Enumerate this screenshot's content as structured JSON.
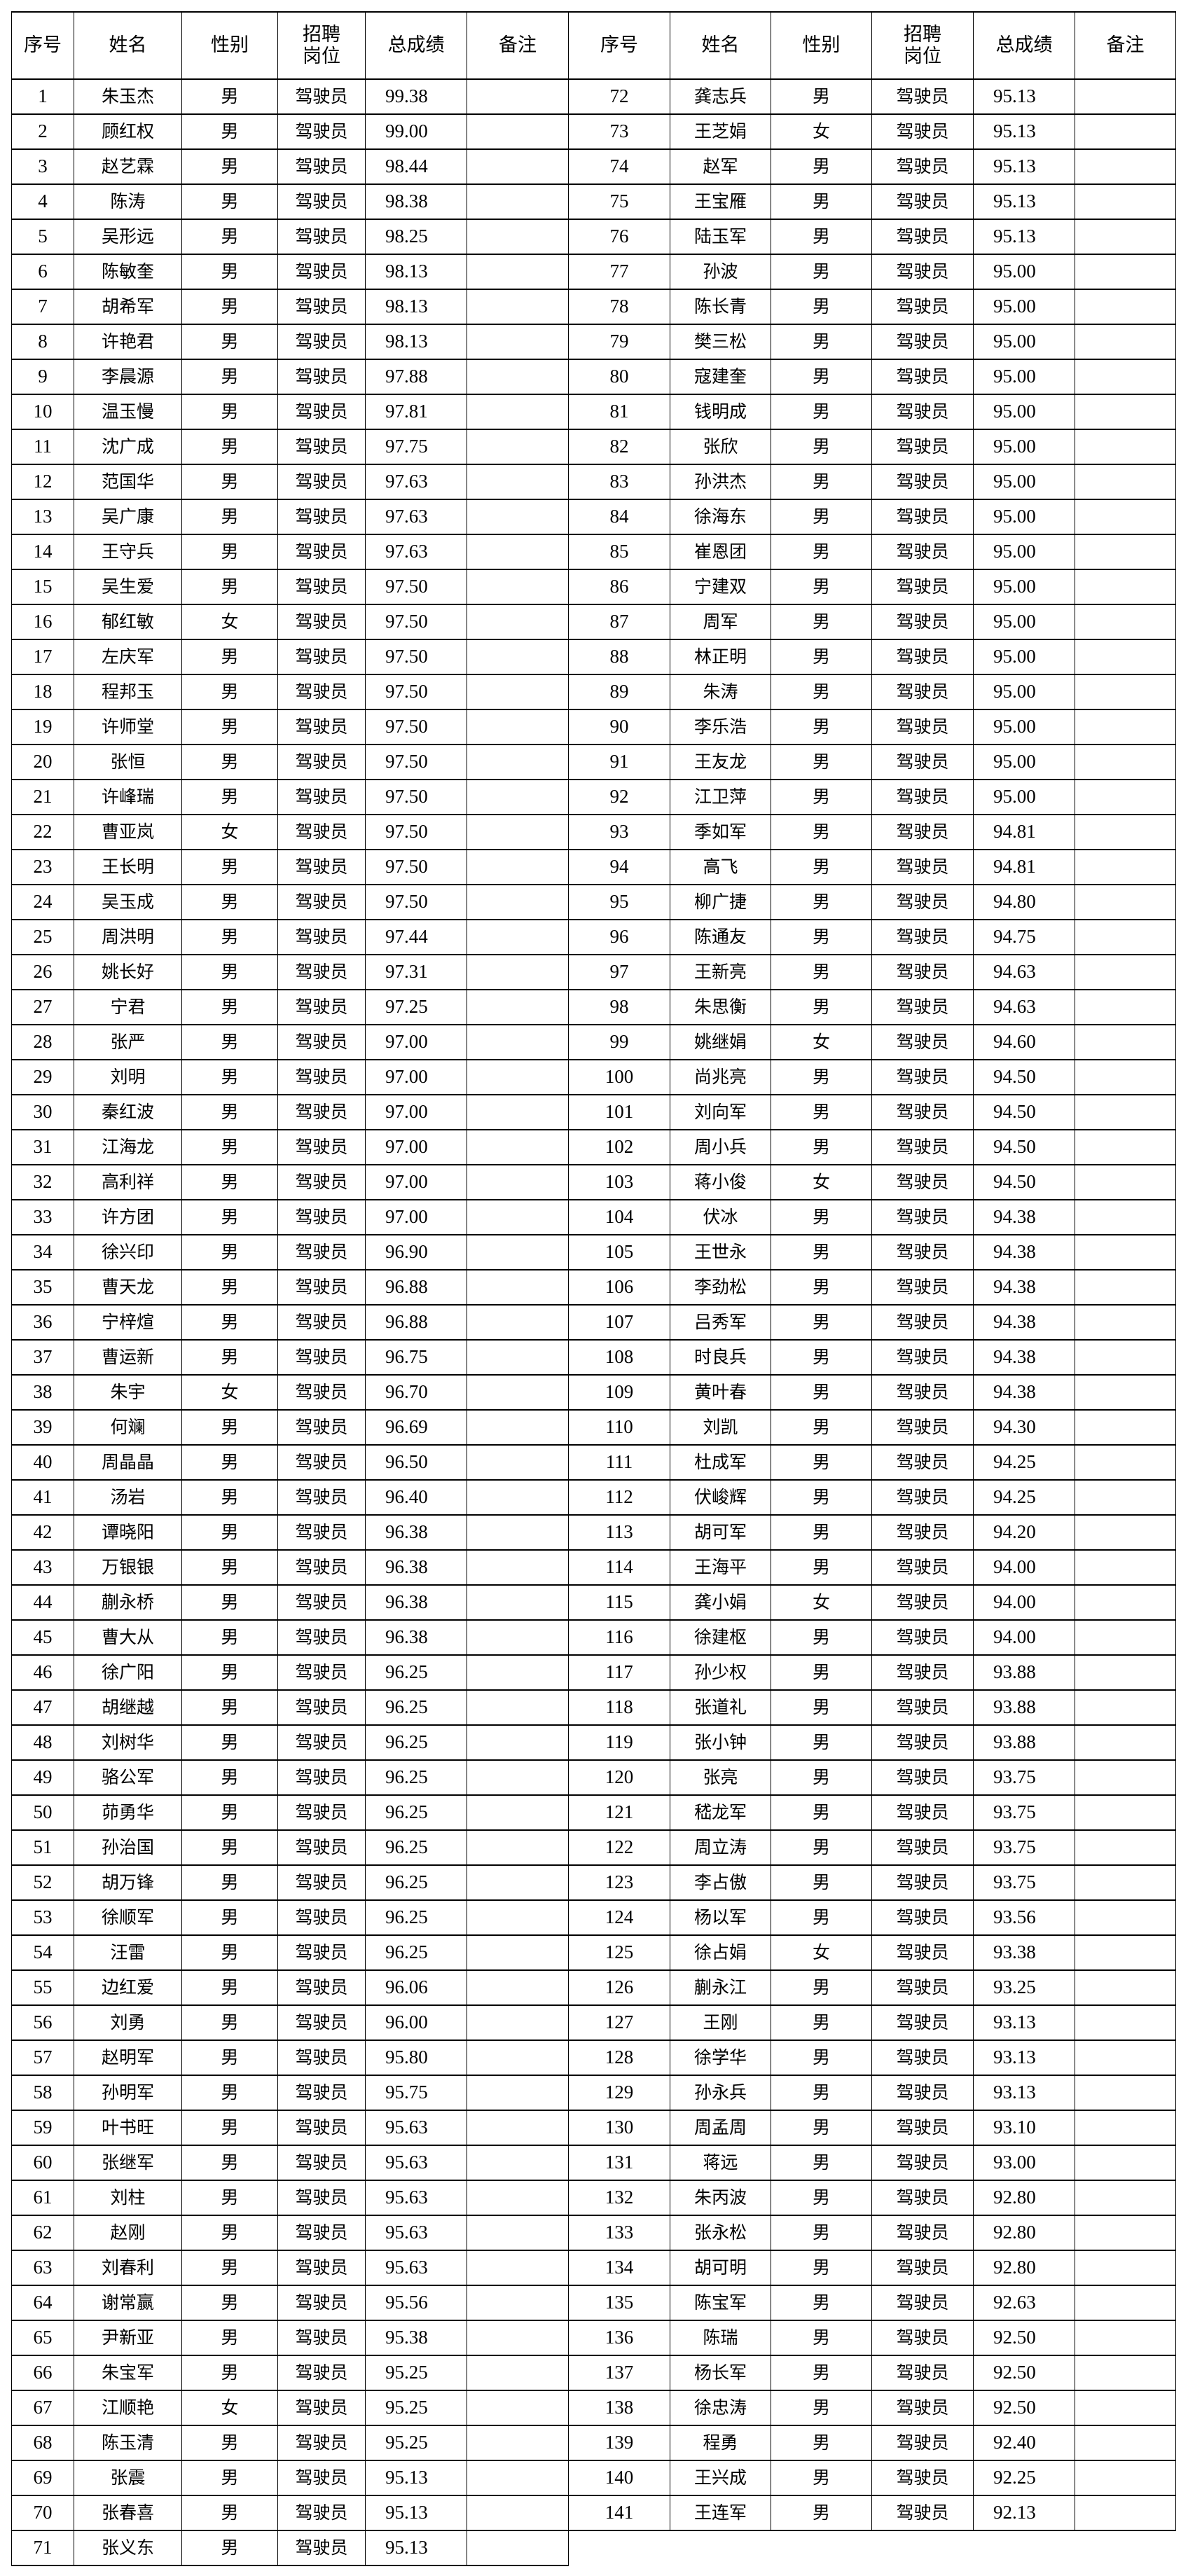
{
  "headers": [
    "序号",
    "姓名",
    "性别",
    "招聘\n岗位",
    "总成绩",
    "备注"
  ],
  "left_rows": [
    [
      "1",
      "朱玉杰",
      "男",
      "驾驶员",
      "99.38",
      ""
    ],
    [
      "2",
      "顾红权",
      "男",
      "驾驶员",
      "99.00",
      ""
    ],
    [
      "3",
      "赵艺霖",
      "男",
      "驾驶员",
      "98.44",
      ""
    ],
    [
      "4",
      "陈涛",
      "男",
      "驾驶员",
      "98.38",
      ""
    ],
    [
      "5",
      "吴形远",
      "男",
      "驾驶员",
      "98.25",
      ""
    ],
    [
      "6",
      "陈敏奎",
      "男",
      "驾驶员",
      "98.13",
      ""
    ],
    [
      "7",
      "胡希军",
      "男",
      "驾驶员",
      "98.13",
      ""
    ],
    [
      "8",
      "许艳君",
      "男",
      "驾驶员",
      "98.13",
      ""
    ],
    [
      "9",
      "李晨源",
      "男",
      "驾驶员",
      "97.88",
      ""
    ],
    [
      "10",
      "温玉慢",
      "男",
      "驾驶员",
      "97.81",
      ""
    ],
    [
      "11",
      "沈广成",
      "男",
      "驾驶员",
      "97.75",
      ""
    ],
    [
      "12",
      "范国华",
      "男",
      "驾驶员",
      "97.63",
      ""
    ],
    [
      "13",
      "吴广康",
      "男",
      "驾驶员",
      "97.63",
      ""
    ],
    [
      "14",
      "王守兵",
      "男",
      "驾驶员",
      "97.63",
      ""
    ],
    [
      "15",
      "吴生爱",
      "男",
      "驾驶员",
      "97.50",
      ""
    ],
    [
      "16",
      "郁红敏",
      "女",
      "驾驶员",
      "97.50",
      ""
    ],
    [
      "17",
      "左庆军",
      "男",
      "驾驶员",
      "97.50",
      ""
    ],
    [
      "18",
      "程邦玉",
      "男",
      "驾驶员",
      "97.50",
      ""
    ],
    [
      "19",
      "许师堂",
      "男",
      "驾驶员",
      "97.50",
      ""
    ],
    [
      "20",
      "张恒",
      "男",
      "驾驶员",
      "97.50",
      ""
    ],
    [
      "21",
      "许峰瑞",
      "男",
      "驾驶员",
      "97.50",
      ""
    ],
    [
      "22",
      "曹亚岚",
      "女",
      "驾驶员",
      "97.50",
      ""
    ],
    [
      "23",
      "王长明",
      "男",
      "驾驶员",
      "97.50",
      ""
    ],
    [
      "24",
      "吴玉成",
      "男",
      "驾驶员",
      "97.50",
      ""
    ],
    [
      "25",
      "周洪明",
      "男",
      "驾驶员",
      "97.44",
      ""
    ],
    [
      "26",
      "姚长好",
      "男",
      "驾驶员",
      "97.31",
      ""
    ],
    [
      "27",
      "宁君",
      "男",
      "驾驶员",
      "97.25",
      ""
    ],
    [
      "28",
      "张严",
      "男",
      "驾驶员",
      "97.00",
      ""
    ],
    [
      "29",
      "刘明",
      "男",
      "驾驶员",
      "97.00",
      ""
    ],
    [
      "30",
      "秦红波",
      "男",
      "驾驶员",
      "97.00",
      ""
    ],
    [
      "31",
      "江海龙",
      "男",
      "驾驶员",
      "97.00",
      ""
    ],
    [
      "32",
      "高利祥",
      "男",
      "驾驶员",
      "97.00",
      ""
    ],
    [
      "33",
      "许方团",
      "男",
      "驾驶员",
      "97.00",
      ""
    ],
    [
      "34",
      "徐兴印",
      "男",
      "驾驶员",
      "96.90",
      ""
    ],
    [
      "35",
      "曹天龙",
      "男",
      "驾驶员",
      "96.88",
      ""
    ],
    [
      "36",
      "宁梓煊",
      "男",
      "驾驶员",
      "96.88",
      ""
    ],
    [
      "37",
      "曹运新",
      "男",
      "驾驶员",
      "96.75",
      ""
    ],
    [
      "38",
      "朱宇",
      "女",
      "驾驶员",
      "96.70",
      ""
    ],
    [
      "39",
      "何斓",
      "男",
      "驾驶员",
      "96.69",
      ""
    ],
    [
      "40",
      "周晶晶",
      "男",
      "驾驶员",
      "96.50",
      ""
    ],
    [
      "41",
      "汤岩",
      "男",
      "驾驶员",
      "96.40",
      ""
    ],
    [
      "42",
      "谭晓阳",
      "男",
      "驾驶员",
      "96.38",
      ""
    ],
    [
      "43",
      "万银银",
      "男",
      "驾驶员",
      "96.38",
      ""
    ],
    [
      "44",
      "蒯永桥",
      "男",
      "驾驶员",
      "96.38",
      ""
    ],
    [
      "45",
      "曹大从",
      "男",
      "驾驶员",
      "96.38",
      ""
    ],
    [
      "46",
      "徐广阳",
      "男",
      "驾驶员",
      "96.25",
      ""
    ],
    [
      "47",
      "胡继越",
      "男",
      "驾驶员",
      "96.25",
      ""
    ],
    [
      "48",
      "刘树华",
      "男",
      "驾驶员",
      "96.25",
      ""
    ],
    [
      "49",
      "骆公军",
      "男",
      "驾驶员",
      "96.25",
      ""
    ],
    [
      "50",
      "茆勇华",
      "男",
      "驾驶员",
      "96.25",
      ""
    ],
    [
      "51",
      "孙治国",
      "男",
      "驾驶员",
      "96.25",
      ""
    ],
    [
      "52",
      "胡万锋",
      "男",
      "驾驶员",
      "96.25",
      ""
    ],
    [
      "53",
      "徐顺军",
      "男",
      "驾驶员",
      "96.25",
      ""
    ],
    [
      "54",
      "汪雷",
      "男",
      "驾驶员",
      "96.25",
      ""
    ],
    [
      "55",
      "边红爱",
      "男",
      "驾驶员",
      "96.06",
      ""
    ],
    [
      "56",
      "刘勇",
      "男",
      "驾驶员",
      "96.00",
      ""
    ],
    [
      "57",
      "赵明军",
      "男",
      "驾驶员",
      "95.80",
      ""
    ],
    [
      "58",
      "孙明军",
      "男",
      "驾驶员",
      "95.75",
      ""
    ],
    [
      "59",
      "叶书旺",
      "男",
      "驾驶员",
      "95.63",
      ""
    ],
    [
      "60",
      "张继军",
      "男",
      "驾驶员",
      "95.63",
      ""
    ],
    [
      "61",
      "刘柱",
      "男",
      "驾驶员",
      "95.63",
      ""
    ],
    [
      "62",
      "赵刚",
      "男",
      "驾驶员",
      "95.63",
      ""
    ],
    [
      "63",
      "刘春利",
      "男",
      "驾驶员",
      "95.63",
      ""
    ],
    [
      "64",
      "谢常赢",
      "男",
      "驾驶员",
      "95.56",
      ""
    ],
    [
      "65",
      "尹新亚",
      "男",
      "驾驶员",
      "95.38",
      ""
    ],
    [
      "66",
      "朱宝军",
      "男",
      "驾驶员",
      "95.25",
      ""
    ],
    [
      "67",
      "江顺艳",
      "女",
      "驾驶员",
      "95.25",
      ""
    ],
    [
      "68",
      "陈玉清",
      "男",
      "驾驶员",
      "95.25",
      ""
    ],
    [
      "69",
      "张震",
      "男",
      "驾驶员",
      "95.13",
      ""
    ],
    [
      "70",
      "张春喜",
      "男",
      "驾驶员",
      "95.13",
      ""
    ],
    [
      "71",
      "张义东",
      "男",
      "驾驶员",
      "95.13",
      ""
    ]
  ],
  "right_rows": [
    [
      "72",
      "龚志兵",
      "男",
      "驾驶员",
      "95.13",
      ""
    ],
    [
      "73",
      "王芝娟",
      "女",
      "驾驶员",
      "95.13",
      ""
    ],
    [
      "74",
      "赵军",
      "男",
      "驾驶员",
      "95.13",
      ""
    ],
    [
      "75",
      "王宝雁",
      "男",
      "驾驶员",
      "95.13",
      ""
    ],
    [
      "76",
      "陆玉军",
      "男",
      "驾驶员",
      "95.13",
      ""
    ],
    [
      "77",
      "孙波",
      "男",
      "驾驶员",
      "95.00",
      ""
    ],
    [
      "78",
      "陈长青",
      "男",
      "驾驶员",
      "95.00",
      ""
    ],
    [
      "79",
      "樊三松",
      "男",
      "驾驶员",
      "95.00",
      ""
    ],
    [
      "80",
      "寇建奎",
      "男",
      "驾驶员",
      "95.00",
      ""
    ],
    [
      "81",
      "钱明成",
      "男",
      "驾驶员",
      "95.00",
      ""
    ],
    [
      "82",
      "张欣",
      "男",
      "驾驶员",
      "95.00",
      ""
    ],
    [
      "83",
      "孙洪杰",
      "男",
      "驾驶员",
      "95.00",
      ""
    ],
    [
      "84",
      "徐海东",
      "男",
      "驾驶员",
      "95.00",
      ""
    ],
    [
      "85",
      "崔恩团",
      "男",
      "驾驶员",
      "95.00",
      ""
    ],
    [
      "86",
      "宁建双",
      "男",
      "驾驶员",
      "95.00",
      ""
    ],
    [
      "87",
      "周军",
      "男",
      "驾驶员",
      "95.00",
      ""
    ],
    [
      "88",
      "林正明",
      "男",
      "驾驶员",
      "95.00",
      ""
    ],
    [
      "89",
      "朱涛",
      "男",
      "驾驶员",
      "95.00",
      ""
    ],
    [
      "90",
      "李乐浩",
      "男",
      "驾驶员",
      "95.00",
      ""
    ],
    [
      "91",
      "王友龙",
      "男",
      "驾驶员",
      "95.00",
      ""
    ],
    [
      "92",
      "江卫萍",
      "男",
      "驾驶员",
      "95.00",
      ""
    ],
    [
      "93",
      "季如军",
      "男",
      "驾驶员",
      "94.81",
      ""
    ],
    [
      "94",
      "高飞",
      "男",
      "驾驶员",
      "94.81",
      ""
    ],
    [
      "95",
      "柳广捷",
      "男",
      "驾驶员",
      "94.80",
      ""
    ],
    [
      "96",
      "陈通友",
      "男",
      "驾驶员",
      "94.75",
      ""
    ],
    [
      "97",
      "王新亮",
      "男",
      "驾驶员",
      "94.63",
      ""
    ],
    [
      "98",
      "朱思衡",
      "男",
      "驾驶员",
      "94.63",
      ""
    ],
    [
      "99",
      "姚继娟",
      "女",
      "驾驶员",
      "94.60",
      ""
    ],
    [
      "100",
      "尚兆亮",
      "男",
      "驾驶员",
      "94.50",
      ""
    ],
    [
      "101",
      "刘向军",
      "男",
      "驾驶员",
      "94.50",
      ""
    ],
    [
      "102",
      "周小兵",
      "男",
      "驾驶员",
      "94.50",
      ""
    ],
    [
      "103",
      "蒋小俊",
      "女",
      "驾驶员",
      "94.50",
      ""
    ],
    [
      "104",
      "伏冰",
      "男",
      "驾驶员",
      "94.38",
      ""
    ],
    [
      "105",
      "王世永",
      "男",
      "驾驶员",
      "94.38",
      ""
    ],
    [
      "106",
      "李劲松",
      "男",
      "驾驶员",
      "94.38",
      ""
    ],
    [
      "107",
      "吕秀军",
      "男",
      "驾驶员",
      "94.38",
      ""
    ],
    [
      "108",
      "时良兵",
      "男",
      "驾驶员",
      "94.38",
      ""
    ],
    [
      "109",
      "黄叶春",
      "男",
      "驾驶员",
      "94.38",
      ""
    ],
    [
      "110",
      "刘凯",
      "男",
      "驾驶员",
      "94.30",
      ""
    ],
    [
      "111",
      "杜成军",
      "男",
      "驾驶员",
      "94.25",
      ""
    ],
    [
      "112",
      "伏峻辉",
      "男",
      "驾驶员",
      "94.25",
      ""
    ],
    [
      "113",
      "胡可军",
      "男",
      "驾驶员",
      "94.20",
      ""
    ],
    [
      "114",
      "王海平",
      "男",
      "驾驶员",
      "94.00",
      ""
    ],
    [
      "115",
      "龚小娟",
      "女",
      "驾驶员",
      "94.00",
      ""
    ],
    [
      "116",
      "徐建枢",
      "男",
      "驾驶员",
      "94.00",
      ""
    ],
    [
      "117",
      "孙少权",
      "男",
      "驾驶员",
      "93.88",
      ""
    ],
    [
      "118",
      "张道礼",
      "男",
      "驾驶员",
      "93.88",
      ""
    ],
    [
      "119",
      "张小钟",
      "男",
      "驾驶员",
      "93.88",
      ""
    ],
    [
      "120",
      "张亮",
      "男",
      "驾驶员",
      "93.75",
      ""
    ],
    [
      "121",
      "嵇龙军",
      "男",
      "驾驶员",
      "93.75",
      ""
    ],
    [
      "122",
      "周立涛",
      "男",
      "驾驶员",
      "93.75",
      ""
    ],
    [
      "123",
      "李占傲",
      "男",
      "驾驶员",
      "93.75",
      ""
    ],
    [
      "124",
      "杨以军",
      "男",
      "驾驶员",
      "93.56",
      ""
    ],
    [
      "125",
      "徐占娟",
      "女",
      "驾驶员",
      "93.38",
      ""
    ],
    [
      "126",
      "蒯永江",
      "男",
      "驾驶员",
      "93.25",
      ""
    ],
    [
      "127",
      "王刚",
      "男",
      "驾驶员",
      "93.13",
      ""
    ],
    [
      "128",
      "徐学华",
      "男",
      "驾驶员",
      "93.13",
      ""
    ],
    [
      "129",
      "孙永兵",
      "男",
      "驾驶员",
      "93.13",
      ""
    ],
    [
      "130",
      "周孟周",
      "男",
      "驾驶员",
      "93.10",
      ""
    ],
    [
      "131",
      "蒋远",
      "男",
      "驾驶员",
      "93.00",
      ""
    ],
    [
      "132",
      "朱丙波",
      "男",
      "驾驶员",
      "92.80",
      ""
    ],
    [
      "133",
      "张永松",
      "男",
      "驾驶员",
      "92.80",
      ""
    ],
    [
      "134",
      "胡可明",
      "男",
      "驾驶员",
      "92.80",
      ""
    ],
    [
      "135",
      "陈宝军",
      "男",
      "驾驶员",
      "92.63",
      ""
    ],
    [
      "136",
      "陈瑞",
      "男",
      "驾驶员",
      "92.50",
      ""
    ],
    [
      "137",
      "杨长军",
      "男",
      "驾驶员",
      "92.50",
      ""
    ],
    [
      "138",
      "徐忠涛",
      "男",
      "驾驶员",
      "92.50",
      ""
    ],
    [
      "139",
      "程勇",
      "男",
      "驾驶员",
      "92.40",
      ""
    ],
    [
      "140",
      "王兴成",
      "男",
      "驾驶员",
      "92.25",
      ""
    ],
    [
      "141",
      "王连军",
      "男",
      "驾驶员",
      "92.13",
      ""
    ]
  ]
}
